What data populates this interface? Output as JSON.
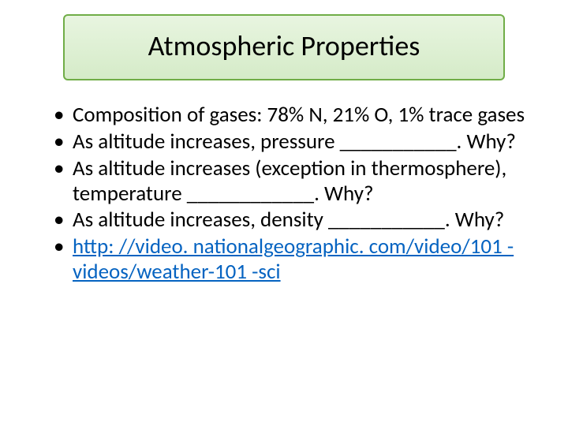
{
  "title": "Atmospheric Properties",
  "bullets": {
    "b0": "Composition of gases: 78% N, 21% O, 1% trace gases",
    "b1": "As altitude increases, pressure ___________. Why?",
    "b2": "As altitude increases (exception in thermosphere), temperature ____________. Why?",
    "b3": "As altitude increases, density ___________. Why?",
    "b4": "http: //video. nationalgeographic. com/video/101 -videos/weather-101 -sci"
  },
  "colors": {
    "title_border": "#70ad47",
    "title_bg_top": "#e8f5e0",
    "title_bg_bottom": "#d5ebc8",
    "text": "#000000",
    "link": "#0563c1",
    "background": "#ffffff"
  },
  "fontsize": {
    "title": 36,
    "body": 27
  }
}
